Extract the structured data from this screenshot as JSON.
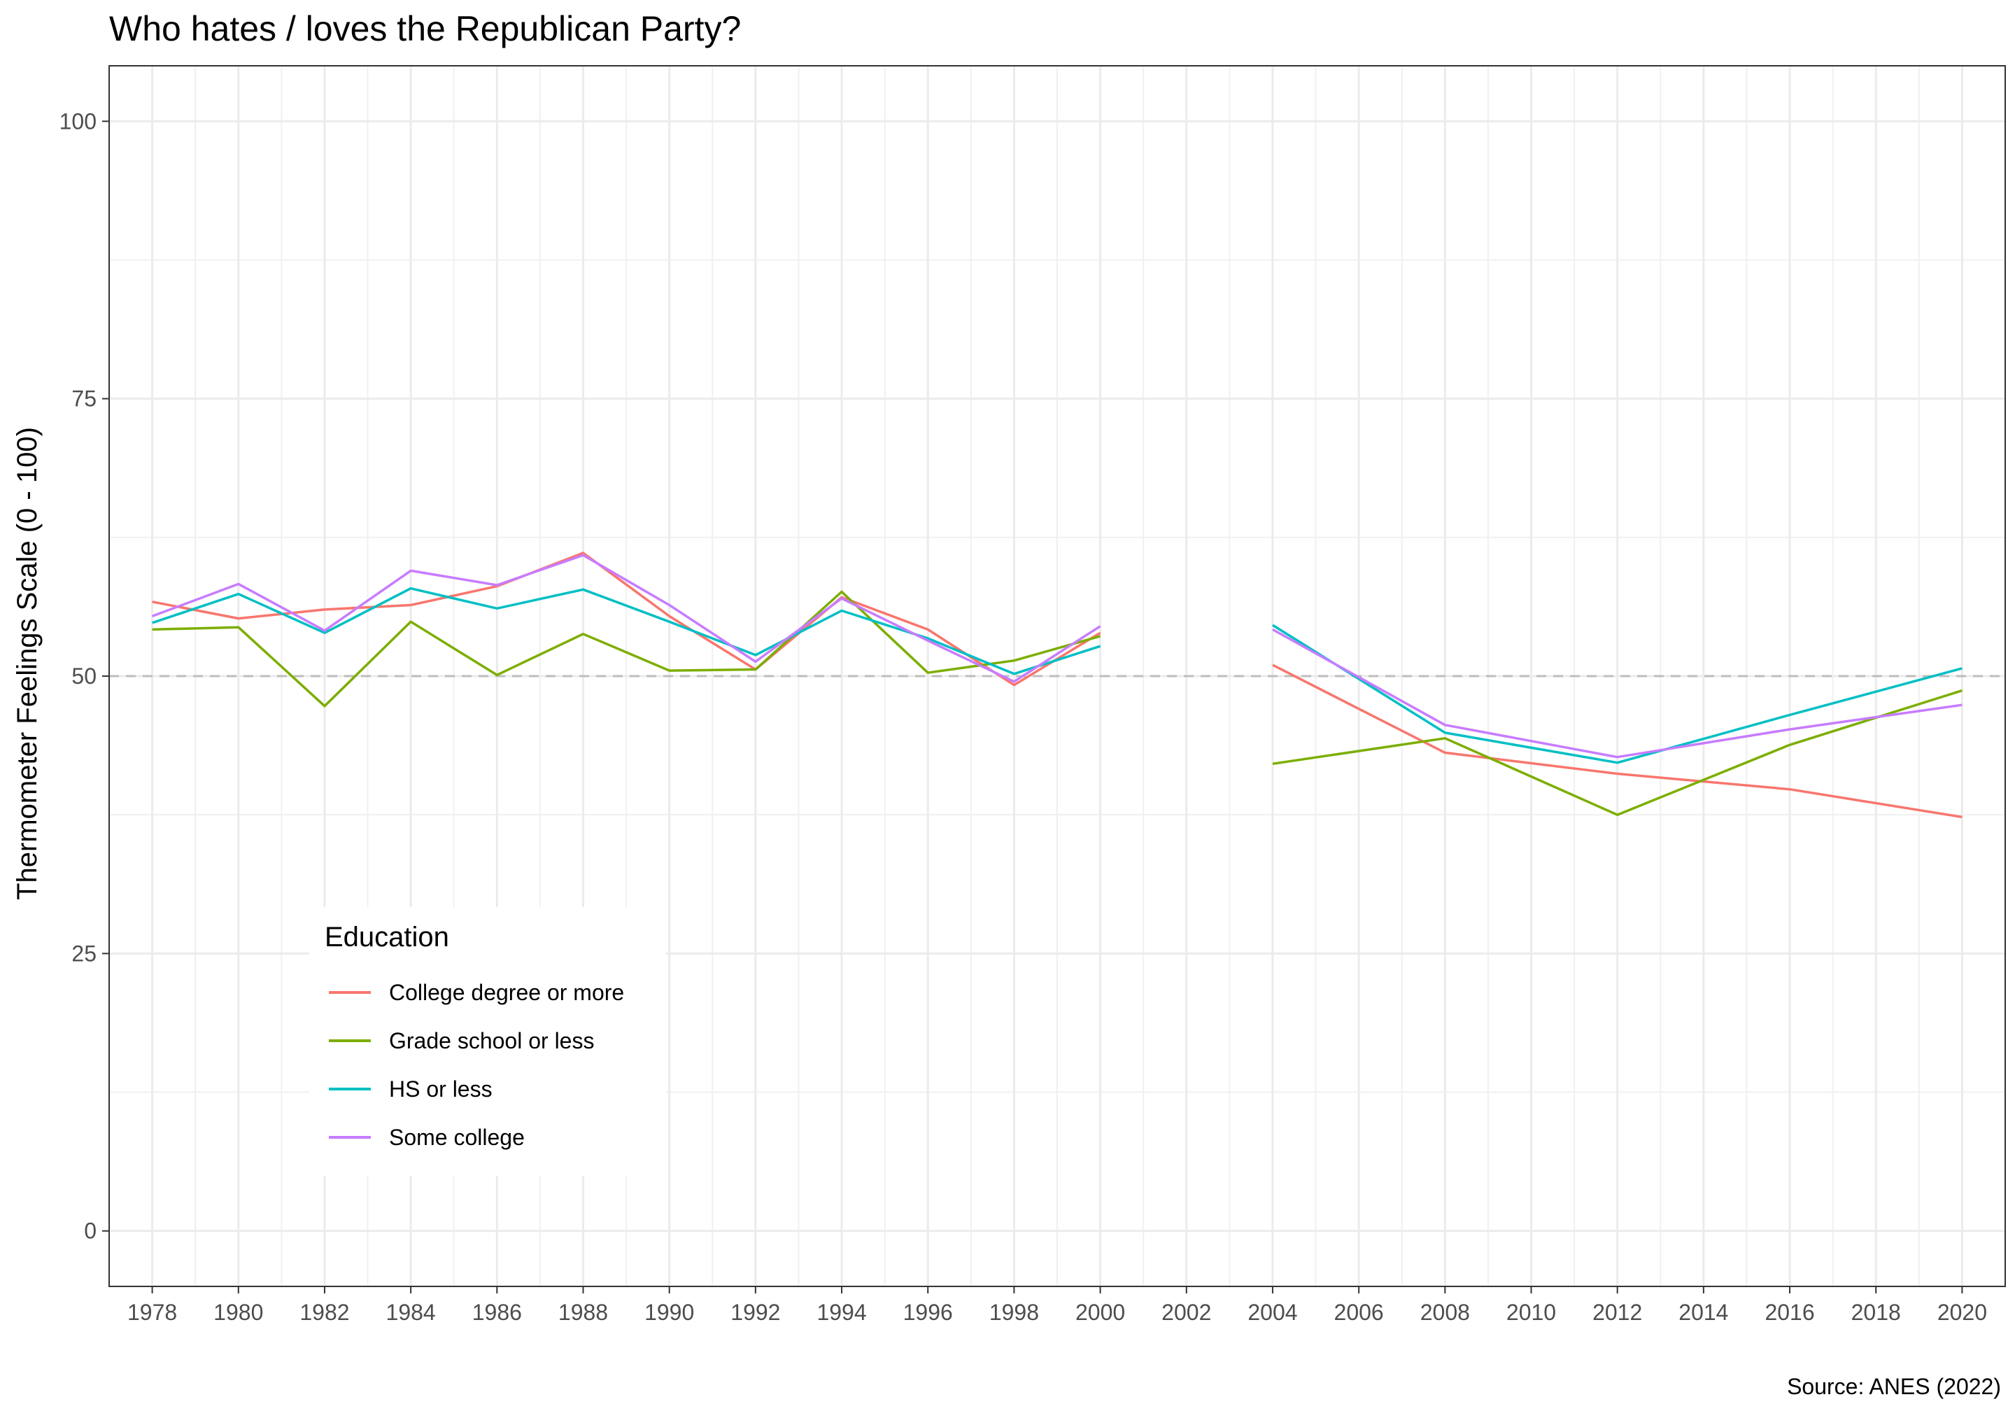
{
  "chart_data": {
    "type": "line",
    "title": "Who hates / loves the Republican Party?",
    "ylabel": "Thermometer Feelings Scale (0 - 100)",
    "xlabel": "",
    "caption": "Source: ANES (2022)",
    "xlim": [
      1977,
      2021
    ],
    "ylim": [
      -5,
      105
    ],
    "x_ticks": [
      1978,
      1980,
      1982,
      1984,
      1986,
      1988,
      1990,
      1992,
      1994,
      1996,
      1998,
      2000,
      2002,
      2004,
      2006,
      2008,
      2010,
      2012,
      2014,
      2016,
      2018,
      2020
    ],
    "y_ticks": [
      0,
      25,
      50,
      75,
      100
    ],
    "reference_line": {
      "y": 50,
      "style": "dashed",
      "color": "#bdbdbd"
    },
    "grid": true,
    "legend": {
      "title": "Education",
      "position": "bottom-left-inside"
    },
    "series": [
      {
        "name": "College degree or more",
        "color": "#F8766D",
        "points": [
          [
            [
              1978,
              56.7
            ],
            [
              1980,
              55.2
            ],
            [
              1982,
              56.0
            ],
            [
              1984,
              56.4
            ],
            [
              1986,
              58.1
            ],
            [
              1988,
              61.1
            ],
            [
              1990,
              55.4
            ],
            [
              1992,
              50.6
            ],
            [
              1994,
              57.1
            ],
            [
              1996,
              54.2
            ],
            [
              1998,
              49.2
            ],
            [
              2000,
              53.9
            ]
          ],
          [
            [
              2004,
              51.0
            ],
            [
              2008,
              43.1
            ],
            [
              2012,
              41.2
            ],
            [
              2016,
              39.8
            ],
            [
              2020,
              37.3
            ]
          ]
        ]
      },
      {
        "name": "Grade school or less",
        "color": "#7CAE00",
        "points": [
          [
            [
              1978,
              54.2
            ],
            [
              1980,
              54.4
            ],
            [
              1982,
              47.3
            ],
            [
              1984,
              54.9
            ],
            [
              1986,
              50.1
            ],
            [
              1988,
              53.8
            ],
            [
              1990,
              50.5
            ],
            [
              1992,
              50.6
            ],
            [
              1994,
              57.6
            ],
            [
              1996,
              50.3
            ],
            [
              1998,
              51.4
            ],
            [
              2000,
              53.6
            ]
          ],
          [
            [
              2004,
              42.1
            ],
            [
              2008,
              44.4
            ],
            [
              2012,
              37.5
            ],
            [
              2016,
              43.8
            ],
            [
              2020,
              48.7
            ]
          ]
        ]
      },
      {
        "name": "HS or less",
        "color": "#00BFC4",
        "points": [
          [
            [
              1978,
              54.8
            ],
            [
              1980,
              57.4
            ],
            [
              1982,
              53.9
            ],
            [
              1984,
              57.9
            ],
            [
              1986,
              56.1
            ],
            [
              1988,
              57.8
            ],
            [
              1990,
              54.9
            ],
            [
              1992,
              51.9
            ],
            [
              1994,
              55.9
            ],
            [
              1996,
              53.4
            ],
            [
              1998,
              50.2
            ],
            [
              2000,
              52.7
            ]
          ],
          [
            [
              2004,
              54.6
            ],
            [
              2008,
              44.9
            ],
            [
              2012,
              42.2
            ],
            [
              2016,
              46.5
            ],
            [
              2020,
              50.7
            ]
          ]
        ]
      },
      {
        "name": "Some college",
        "color": "#C77CFF",
        "points": [
          [
            [
              1978,
              55.4
            ],
            [
              1980,
              58.3
            ],
            [
              1982,
              54.1
            ],
            [
              1984,
              59.5
            ],
            [
              1986,
              58.2
            ],
            [
              1988,
              60.9
            ],
            [
              1990,
              56.4
            ],
            [
              1992,
              51.3
            ],
            [
              1994,
              57.0
            ],
            [
              1996,
              53.2
            ],
            [
              1998,
              49.5
            ],
            [
              2000,
              54.5
            ]
          ],
          [
            [
              2004,
              54.2
            ],
            [
              2008,
              45.6
            ],
            [
              2012,
              42.7
            ],
            [
              2016,
              45.2
            ],
            [
              2020,
              47.4
            ]
          ]
        ]
      }
    ]
  }
}
